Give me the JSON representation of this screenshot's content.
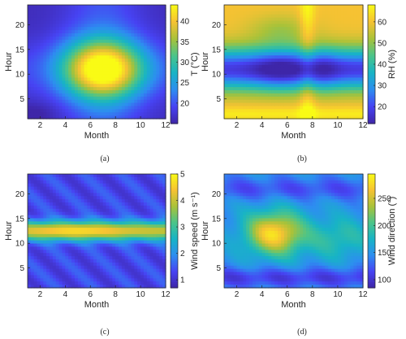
{
  "figure": {
    "panel_labels": [
      "(a)",
      "(b)",
      "(c)",
      "(d)"
    ]
  },
  "chart_data": [
    {
      "type": "heatmap",
      "panel": "(a)",
      "xlabel": "Month",
      "ylabel": "Hour",
      "colorbar_label": "T (°C)",
      "xlim": [
        1,
        12
      ],
      "ylim": [
        1,
        24
      ],
      "xticks": [
        "2",
        "4",
        "6",
        "8",
        "10",
        "12"
      ],
      "yticks": [
        "5",
        "10",
        "15",
        "20"
      ],
      "colorbar_ticks": [
        "20",
        "25",
        "30",
        "35",
        "40"
      ],
      "clim": [
        15,
        44
      ],
      "grid": false,
      "colormap": [
        "#3e26a8",
        "#4743f3",
        "#2d8ef0",
        "#17b4c5",
        "#4bc48a",
        "#a9c239",
        "#f6c233",
        "#f9fb15"
      ]
    },
    {
      "type": "heatmap",
      "panel": "(b)",
      "xlabel": "Month",
      "ylabel": "Hour",
      "colorbar_label": "RH (%)",
      "xlim": [
        1,
        12
      ],
      "ylim": [
        1,
        24
      ],
      "xticks": [
        "2",
        "4",
        "6",
        "8",
        "10",
        "12"
      ],
      "yticks": [
        "5",
        "10",
        "15",
        "20"
      ],
      "colorbar_ticks": [
        "20",
        "30",
        "40",
        "50",
        "60"
      ],
      "clim": [
        12,
        68
      ],
      "grid": false,
      "colormap": [
        "#3e26a8",
        "#4743f3",
        "#2d8ef0",
        "#17b4c5",
        "#4bc48a",
        "#a9c239",
        "#f6c233",
        "#f9fb15"
      ]
    },
    {
      "type": "heatmap",
      "panel": "(c)",
      "xlabel": "Month",
      "ylabel": "Hour",
      "colorbar_label": "Wind speed (m s⁻¹)",
      "xlim": [
        1,
        12
      ],
      "ylim": [
        1,
        24
      ],
      "xticks": [
        "2",
        "4",
        "6",
        "8",
        "10",
        "12"
      ],
      "yticks": [
        "5",
        "10",
        "15",
        "20"
      ],
      "colorbar_ticks": [
        "1",
        "2",
        "3",
        "4",
        "5"
      ],
      "clim": [
        0.7,
        5
      ],
      "grid": false,
      "colormap": [
        "#3e26a8",
        "#4743f3",
        "#2d8ef0",
        "#17b4c5",
        "#4bc48a",
        "#a9c239",
        "#f6c233",
        "#f9fb15"
      ]
    },
    {
      "type": "heatmap",
      "panel": "(d)",
      "xlabel": "Month",
      "ylabel": "Hour",
      "colorbar_label": "Wind direction (°)",
      "xlim": [
        1,
        12
      ],
      "ylim": [
        1,
        24
      ],
      "xticks": [
        "2",
        "4",
        "6",
        "8",
        "10",
        "12"
      ],
      "yticks": [
        "5",
        "10",
        "15",
        "20"
      ],
      "colorbar_ticks": [
        "100",
        "150",
        "200",
        "250"
      ],
      "clim": [
        85,
        295
      ],
      "grid": false,
      "colormap": [
        "#3e26a8",
        "#4743f3",
        "#2d8ef0",
        "#17b4c5",
        "#4bc48a",
        "#a9c239",
        "#f6c233",
        "#f9fb15"
      ]
    }
  ]
}
